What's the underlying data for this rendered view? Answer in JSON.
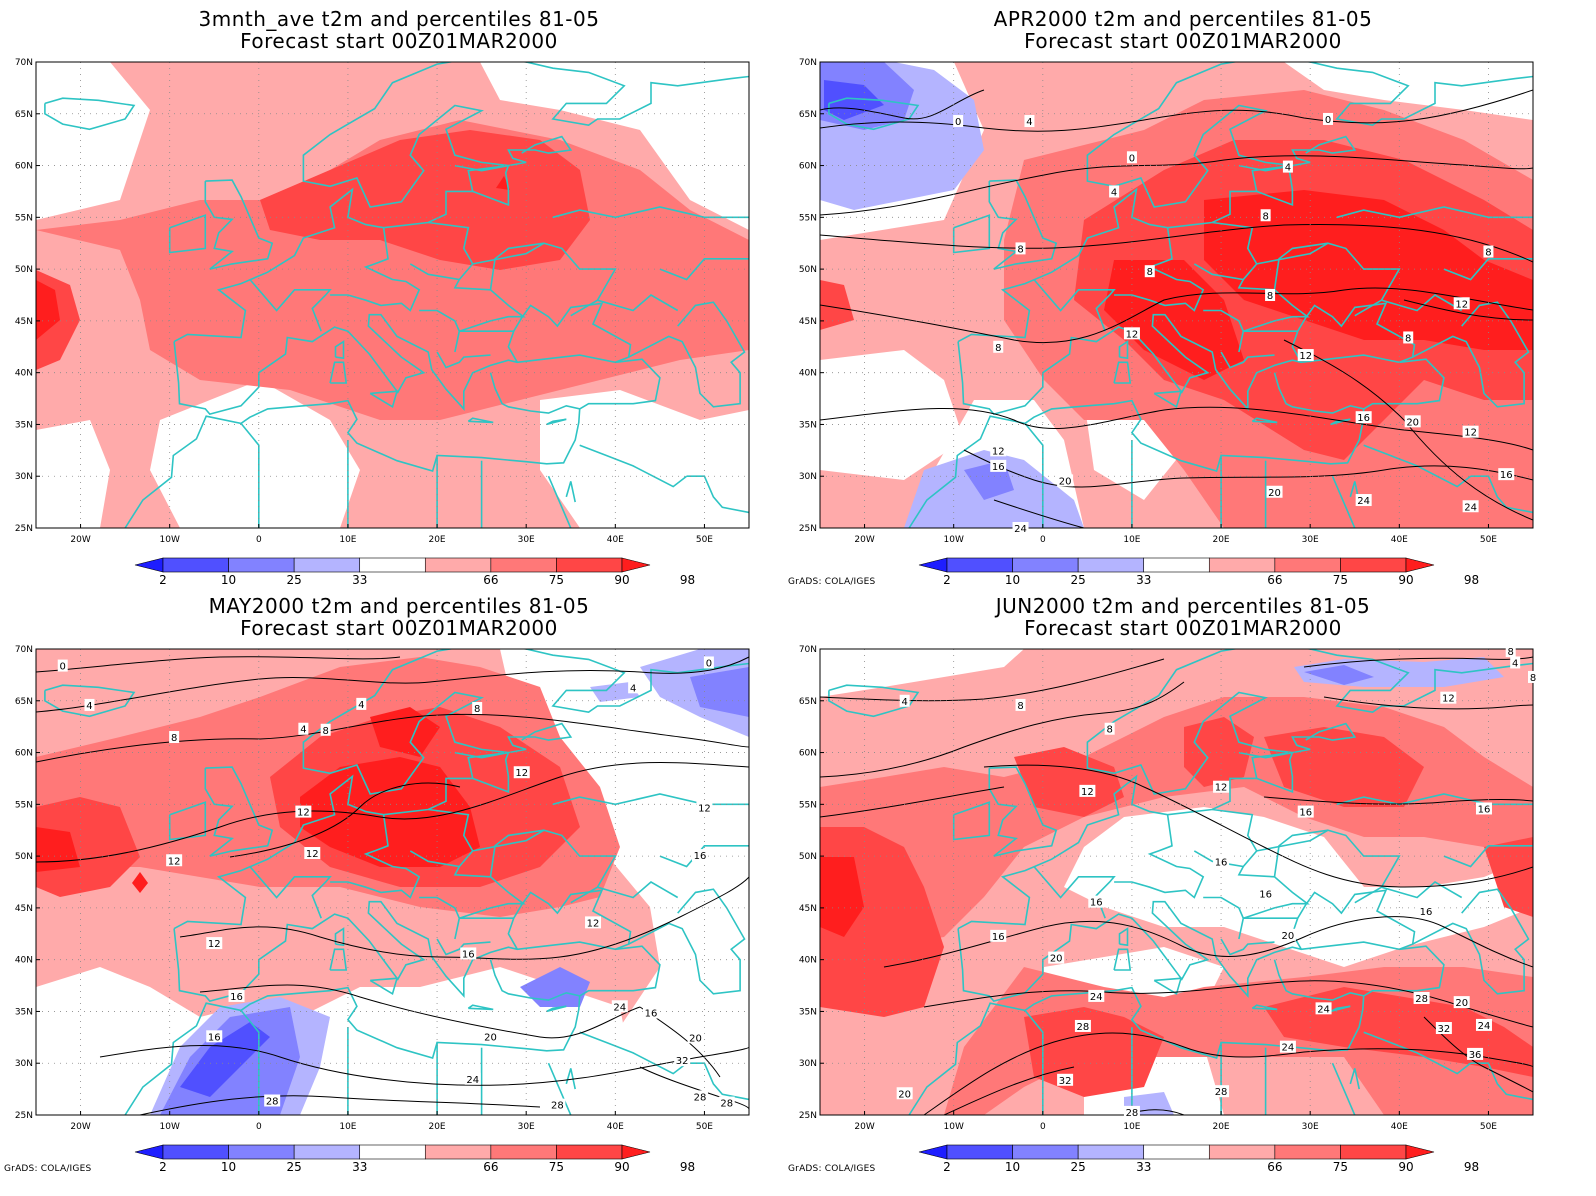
{
  "panels": [
    {
      "id": "p1",
      "title_line1": "3mnth_ave t2m and percentiles 81-05",
      "title_line2": "Forecast start 00Z01MAR2000",
      "credit": "",
      "contour_labels": []
    },
    {
      "id": "p2",
      "title_line1": "APR2000 t2m and percentiles 81-05",
      "title_line2": "Forecast start 00Z01MAR2000",
      "credit": "GrADS: COLA/IGES",
      "contour_labels": [
        {
          "text": "0",
          "lon": -9.5,
          "lat": 64.3
        },
        {
          "text": "4",
          "lon": -1.5,
          "lat": 64.3
        },
        {
          "text": "0",
          "lon": 10,
          "lat": 60.8
        },
        {
          "text": "0",
          "lon": 32,
          "lat": 64.5
        },
        {
          "text": "4",
          "lon": 8,
          "lat": 57.5
        },
        {
          "text": "4",
          "lon": 27.5,
          "lat": 59.9
        },
        {
          "text": "8",
          "lon": -2.5,
          "lat": 52
        },
        {
          "text": "8",
          "lon": 25,
          "lat": 55.2
        },
        {
          "text": "8",
          "lon": 12,
          "lat": 49.8
        },
        {
          "text": "8",
          "lon": 25.5,
          "lat": 47.5
        },
        {
          "text": "8",
          "lon": 50,
          "lat": 51.7
        },
        {
          "text": "8",
          "lon": -5,
          "lat": 42.5
        },
        {
          "text": "8",
          "lon": 41,
          "lat": 43.4
        },
        {
          "text": "12",
          "lon": 10,
          "lat": 43.8
        },
        {
          "text": "12",
          "lon": 29.5,
          "lat": 41.7
        },
        {
          "text": "12",
          "lon": 47,
          "lat": 46.7
        },
        {
          "text": "12",
          "lon": -5,
          "lat": 32.5
        },
        {
          "text": "12",
          "lon": 48,
          "lat": 34.3
        },
        {
          "text": "16",
          "lon": -5,
          "lat": 31
        },
        {
          "text": "16",
          "lon": 36,
          "lat": 35.7
        },
        {
          "text": "16",
          "lon": 52,
          "lat": 30.2
        },
        {
          "text": "20",
          "lon": 2.5,
          "lat": 29.6
        },
        {
          "text": "20",
          "lon": 41.5,
          "lat": 35.3
        },
        {
          "text": "20",
          "lon": 26,
          "lat": 28.5
        },
        {
          "text": "24",
          "lon": 36,
          "lat": 27.7
        },
        {
          "text": "24",
          "lon": 48,
          "lat": 27.1
        },
        {
          "text": "24",
          "lon": -2.5,
          "lat": 25
        }
      ]
    },
    {
      "id": "p3",
      "title_line1": "MAY2000 t2m and percentiles 81-05",
      "title_line2": "Forecast start 00Z01MAR2000",
      "credit": "GrADS: COLA/IGES",
      "contour_labels": [
        {
          "text": "0",
          "lon": -22,
          "lat": 68.4
        },
        {
          "text": "0",
          "lon": 50.5,
          "lat": 68.7
        },
        {
          "text": "4",
          "lon": -19,
          "lat": 64.6
        },
        {
          "text": "4",
          "lon": 11.5,
          "lat": 64.7
        },
        {
          "text": "4",
          "lon": 5,
          "lat": 62.3
        },
        {
          "text": "4",
          "lon": 42,
          "lat": 66.3
        },
        {
          "text": "8",
          "lon": -9.5,
          "lat": 61.5
        },
        {
          "text": "8",
          "lon": 7.5,
          "lat": 62.2
        },
        {
          "text": "8",
          "lon": 24.5,
          "lat": 64.3
        },
        {
          "text": "12",
          "lon": 29.5,
          "lat": 58.1
        },
        {
          "text": "12",
          "lon": 5,
          "lat": 54.3
        },
        {
          "text": "12",
          "lon": 6,
          "lat": 50.3
        },
        {
          "text": "12",
          "lon": -9.5,
          "lat": 49.6
        },
        {
          "text": "12",
          "lon": 50,
          "lat": 54.7
        },
        {
          "text": "12",
          "lon": 37.5,
          "lat": 43.6
        },
        {
          "text": "12",
          "lon": -5,
          "lat": 41.6
        },
        {
          "text": "16",
          "lon": 49.5,
          "lat": 50.1
        },
        {
          "text": "16",
          "lon": 23.5,
          "lat": 40.6
        },
        {
          "text": "16",
          "lon": -2.5,
          "lat": 36.5
        },
        {
          "text": "16",
          "lon": -5,
          "lat": 32.6
        },
        {
          "text": "16",
          "lon": 44,
          "lat": 34.9
        },
        {
          "text": "20",
          "lon": 26,
          "lat": 32.6
        },
        {
          "text": "20",
          "lon": 49,
          "lat": 32.5
        },
        {
          "text": "24",
          "lon": 40.5,
          "lat": 35.5
        },
        {
          "text": "24",
          "lon": 24,
          "lat": 28.5
        },
        {
          "text": "28",
          "lon": 33.5,
          "lat": 26
        },
        {
          "text": "28",
          "lon": 1.5,
          "lat": 26.4
        },
        {
          "text": "28",
          "lon": 49.5,
          "lat": 26.8
        },
        {
          "text": "28",
          "lon": 52.5,
          "lat": 26.2
        },
        {
          "text": "32",
          "lon": 47.5,
          "lat": 30.3
        }
      ]
    },
    {
      "id": "p4",
      "title_line1": "JUN2000 t2m and percentiles 81-05",
      "title_line2": "Forecast start 00Z01MAR2000",
      "credit": "GrADS: COLA/IGES",
      "contour_labels": [
        {
          "text": "4",
          "lon": -15.5,
          "lat": 65
        },
        {
          "text": "8",
          "lon": 52.5,
          "lat": 69.8
        },
        {
          "text": "4",
          "lon": 53,
          "lat": 68.7
        },
        {
          "text": "8",
          "lon": 55,
          "lat": 67.3
        },
        {
          "text": "8",
          "lon": -2.5,
          "lat": 64.6
        },
        {
          "text": "12",
          "lon": 45.5,
          "lat": 65.3
        },
        {
          "text": "8",
          "lon": 7.5,
          "lat": 62.3
        },
        {
          "text": "12",
          "lon": 5,
          "lat": 56.3
        },
        {
          "text": "12",
          "lon": 20,
          "lat": 56.7
        },
        {
          "text": "16",
          "lon": 29.5,
          "lat": 54.3
        },
        {
          "text": "16",
          "lon": 49.5,
          "lat": 54.6
        },
        {
          "text": "16",
          "lon": 20,
          "lat": 49.5
        },
        {
          "text": "16",
          "lon": 25,
          "lat": 46.4
        },
        {
          "text": "16",
          "lon": 6,
          "lat": 45.6
        },
        {
          "text": "16",
          "lon": -5,
          "lat": 42.3
        },
        {
          "text": "16",
          "lon": 43,
          "lat": 44.7
        },
        {
          "text": "20",
          "lon": 27.5,
          "lat": 42.4
        },
        {
          "text": "20",
          "lon": 1.5,
          "lat": 40.2
        },
        {
          "text": "24",
          "lon": 6,
          "lat": 36.5
        },
        {
          "text": "28",
          "lon": 4.5,
          "lat": 33.6
        },
        {
          "text": "24",
          "lon": 31.5,
          "lat": 35.3
        },
        {
          "text": "28",
          "lon": 42.5,
          "lat": 36.3
        },
        {
          "text": "20",
          "lon": 47,
          "lat": 35.9
        },
        {
          "text": "24",
          "lon": 27.5,
          "lat": 31.6
        },
        {
          "text": "32",
          "lon": 45,
          "lat": 33.4
        },
        {
          "text": "24",
          "lon": 49.5,
          "lat": 33.7
        },
        {
          "text": "36",
          "lon": 48.5,
          "lat": 30.9
        },
        {
          "text": "32",
          "lon": 2.5,
          "lat": 28.4
        },
        {
          "text": "28",
          "lon": 20,
          "lat": 27.3
        },
        {
          "text": "20",
          "lon": -15.5,
          "lat": 27.1
        },
        {
          "text": "28",
          "lon": 10,
          "lat": 25.3
        }
      ]
    }
  ],
  "axes": {
    "lat_labels": [
      "70N",
      "65N",
      "60N",
      "55N",
      "50N",
      "45N",
      "40N",
      "35N",
      "30N",
      "25N"
    ],
    "lat_values": [
      70,
      65,
      60,
      55,
      50,
      45,
      40,
      35,
      30,
      25
    ],
    "lon_labels": [
      "20W",
      "10W",
      "0",
      "10E",
      "20E",
      "30E",
      "40E",
      "50E"
    ],
    "lon_values": [
      -20,
      -10,
      0,
      10,
      20,
      30,
      40,
      50
    ],
    "lon_range": [
      -25,
      55
    ],
    "lat_range": [
      25,
      70
    ]
  },
  "colorbar": {
    "labels": [
      "2",
      "10",
      "25",
      "33",
      "66",
      "75",
      "90",
      "98"
    ],
    "colors": [
      "#1e1eff",
      "#5050ff",
      "#8282ff",
      "#b4b4ff",
      "#ffffff",
      "#ffaaaa",
      "#ff7878",
      "#ff4646",
      "#ff1e1e"
    ]
  },
  "colors": {
    "coast": "#2ec4c4",
    "contour": "#000000",
    "grid": "#8a8a8a"
  }
}
